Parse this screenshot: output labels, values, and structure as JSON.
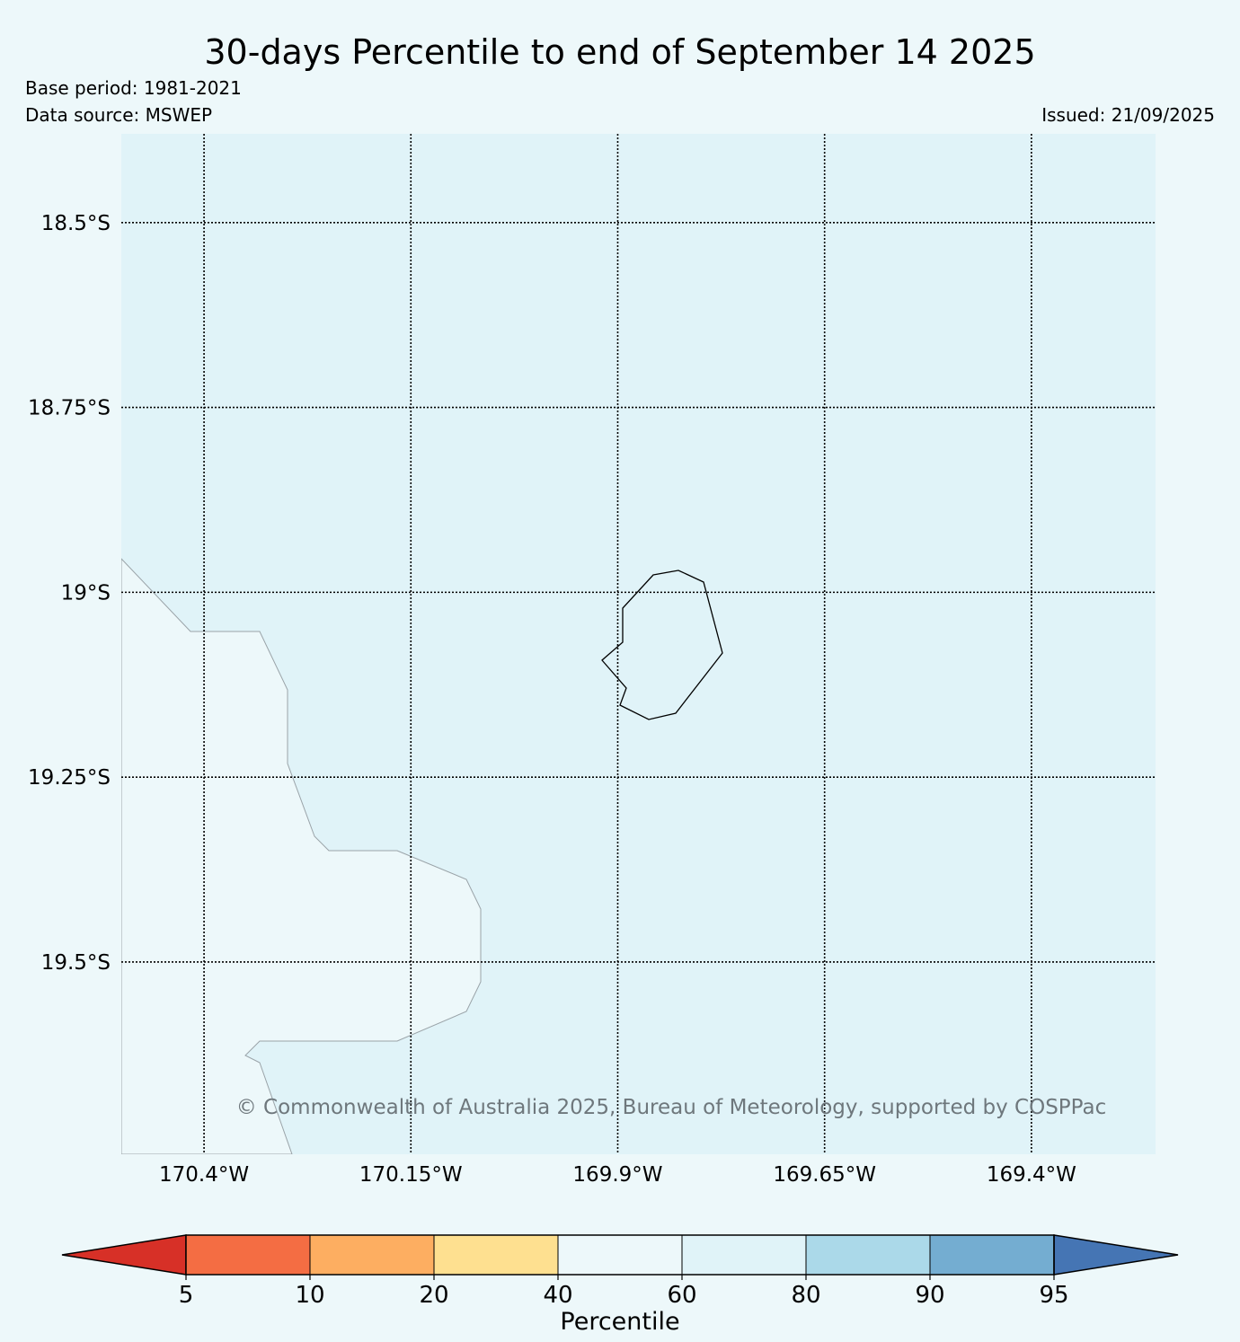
{
  "header": {
    "title": "30-days Percentile to end of September 14 2025",
    "base_period": "Base period: 1981-2021",
    "data_source": "Data source: MSWEP",
    "issued": "Issued: 21/09/2025"
  },
  "map": {
    "lon_range": [
      -170.5,
      -169.25
    ],
    "lat_range": [
      -19.76,
      -18.38
    ],
    "lat_ticks": [
      {
        "value": -18.5,
        "label": "18.5°S"
      },
      {
        "value": -18.75,
        "label": "18.75°S"
      },
      {
        "value": -19.0,
        "label": "19°S"
      },
      {
        "value": -19.25,
        "label": "19.25°S"
      },
      {
        "value": -19.5,
        "label": "19.5°S"
      }
    ],
    "lon_ticks": [
      {
        "value": -170.4,
        "label": "170.4°W"
      },
      {
        "value": -170.15,
        "label": "170.15°W"
      },
      {
        "value": -169.9,
        "label": "169.9°W"
      },
      {
        "value": -169.65,
        "label": "169.65°W"
      },
      {
        "value": -169.4,
        "label": "169.4°W"
      }
    ],
    "grid": true,
    "ocean_color": "#e0f3f8",
    "region_fill_color": "#edf8fa",
    "copyright": "© Commonwealth of Australia 2025, Bureau of Meteorology, supported by COSPPac"
  },
  "colorbar": {
    "label": "Percentile",
    "ticks": [
      "5",
      "10",
      "20",
      "40",
      "60",
      "80",
      "90",
      "95"
    ],
    "colors": [
      "#d73027",
      "#f46d43",
      "#fdae61",
      "#fee090",
      "#edf8fa",
      "#e0f3f8",
      "#abd9e9",
      "#74add1",
      "#4575b4"
    ]
  }
}
